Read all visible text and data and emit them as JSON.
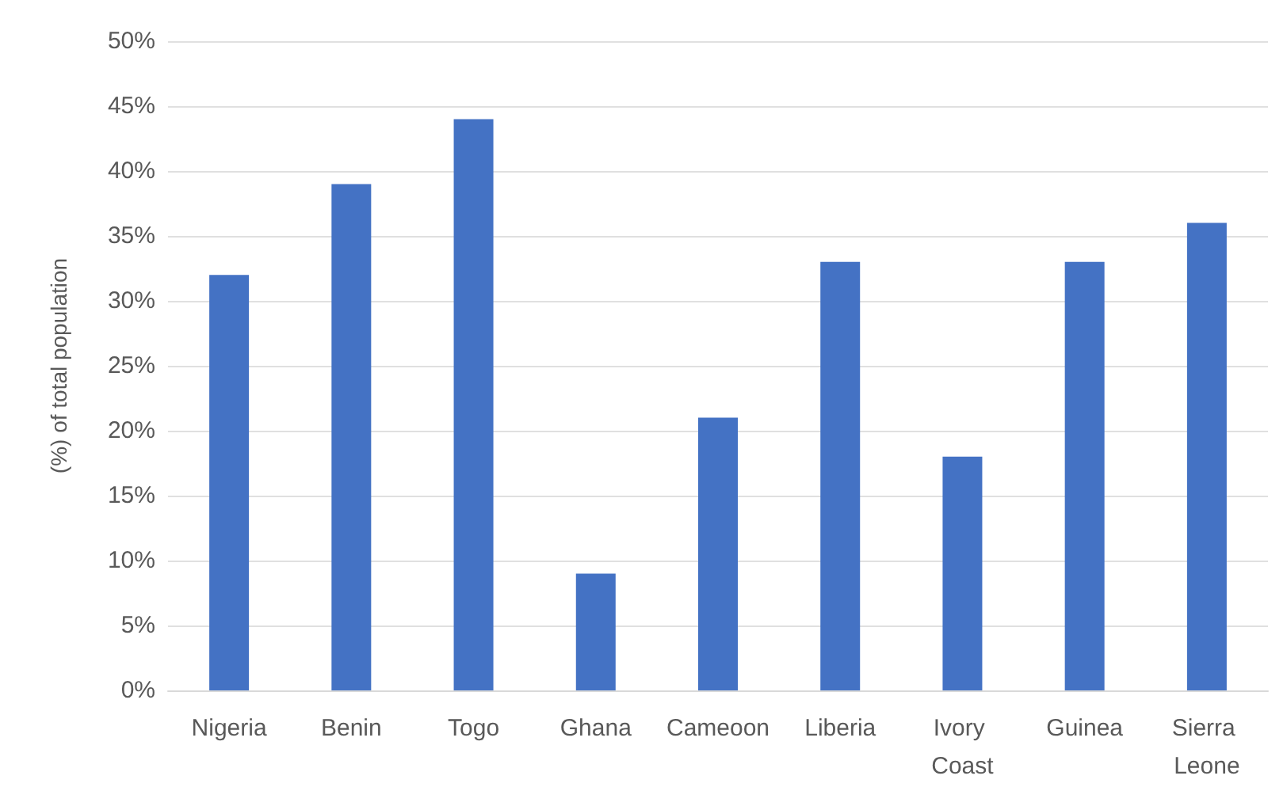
{
  "chart_data": {
    "type": "bar",
    "ylabel": "(%) of total population",
    "categories": [
      "Nigeria",
      "Benin",
      "Togo",
      "Ghana",
      "Cameoon",
      "Liberia",
      "Ivory Coast",
      "Guinea",
      "Sierra Leone"
    ],
    "values": [
      32,
      39,
      44,
      9,
      21,
      33,
      18,
      33,
      36
    ],
    "color": "#4472c4",
    "ylim": [
      0,
      50
    ],
    "yticks": [
      {
        "value": 0,
        "label": "0%"
      },
      {
        "value": 5,
        "label": "5%"
      },
      {
        "value": 10,
        "label": "10%"
      },
      {
        "value": 15,
        "label": "15%"
      },
      {
        "value": 20,
        "label": "20%"
      },
      {
        "value": 25,
        "label": "25%"
      },
      {
        "value": 30,
        "label": "30%"
      },
      {
        "value": 35,
        "label": "35%"
      },
      {
        "value": 40,
        "label": "40%"
      },
      {
        "value": 45,
        "label": "45%"
      },
      {
        "value": 50,
        "label": "50%"
      }
    ],
    "grid": "y"
  }
}
